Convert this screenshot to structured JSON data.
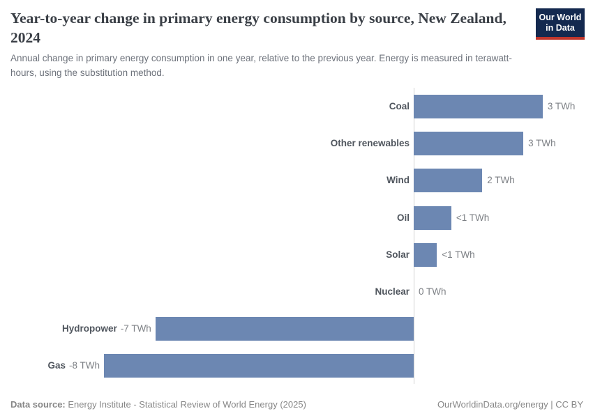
{
  "header": {
    "title": "Year-to-year change in primary energy consumption by source, New Zealand, 2024",
    "subtitle": "Annual change in primary energy consumption in one year, relative to the previous year. Energy is measured in terawatt-hours, using the substitution method.",
    "logo": {
      "line1": "Our World",
      "line2": "in Data",
      "bg_color": "#14294f",
      "accent_color": "#c0362c"
    }
  },
  "chart_data": {
    "type": "bar",
    "orientation": "horizontal",
    "title": "Year-to-year change in primary energy consumption by source, New Zealand, 2024",
    "unit": "TWh",
    "categories": [
      "Coal",
      "Other renewables",
      "Wind",
      "Oil",
      "Solar",
      "Nuclear",
      "Hydropower",
      "Gas"
    ],
    "values": [
      3.33,
      2.83,
      1.77,
      0.97,
      0.6,
      0,
      -6.67,
      -8
    ],
    "value_labels": [
      "3 TWh",
      "3 TWh",
      "2 TWh",
      "<1 TWh",
      "<1 TWh",
      "0 TWh",
      "-7 TWh",
      "-8 TWh"
    ],
    "xlim": [
      -8.2,
      4.6
    ],
    "grid": false,
    "zero_line": true,
    "legend": "none",
    "bar_color": "#6c87b2",
    "axis_color": "#d1d1d1",
    "category_label_color": "#50565e",
    "value_label_color": "#7d8085"
  },
  "footer": {
    "source_label": "Data source:",
    "source_text": "Energy Institute - Statistical Review of World Energy (2025)",
    "link_text": "OurWorldinData.org/energy | CC BY"
  }
}
